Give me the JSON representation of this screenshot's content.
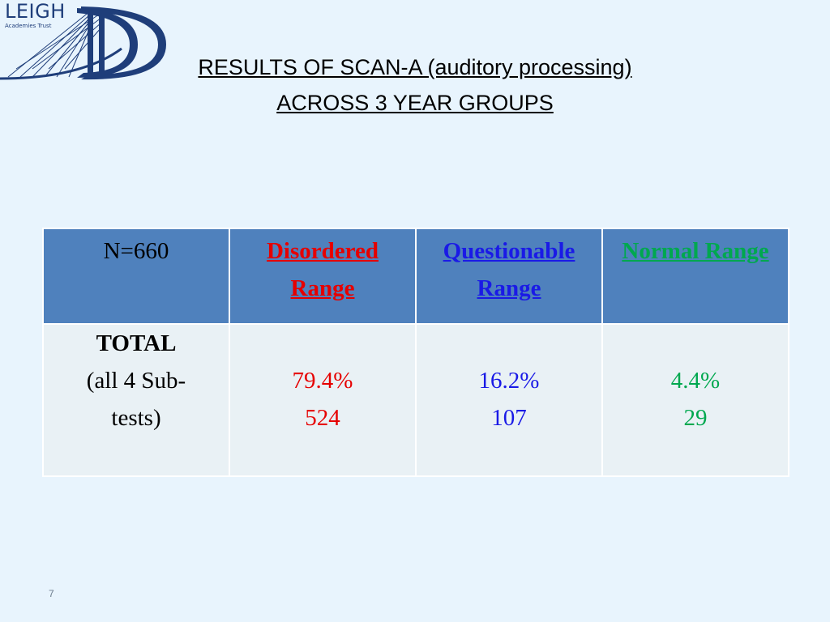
{
  "logo": {
    "name": "LEIGH",
    "subtitle": "Academies Trust"
  },
  "title": {
    "line1": "RESULTS OF SCAN-A (auditory processing)",
    "line2": " ACROSS 3 YEAR GROUPS"
  },
  "table": {
    "headers": {
      "n": "N=660",
      "disordered": "Disordered Range",
      "questionable": "Questionable Range",
      "normal": "Normal Range"
    },
    "row": {
      "label_bold": "TOTAL",
      "label_rest_1": "(all 4 Sub-",
      "label_rest_2": "tests)",
      "disordered_pct": "79.4%",
      "disordered_count": "524",
      "questionable_pct": "16.2%",
      "questionable_count": "107",
      "normal_pct": "4.4%",
      "normal_count": "29"
    }
  },
  "colors": {
    "header_bg": "#4f81bd",
    "disordered": "#e60000",
    "questionable": "#1a1ae6",
    "normal": "#00a84f"
  },
  "page_number": "7"
}
